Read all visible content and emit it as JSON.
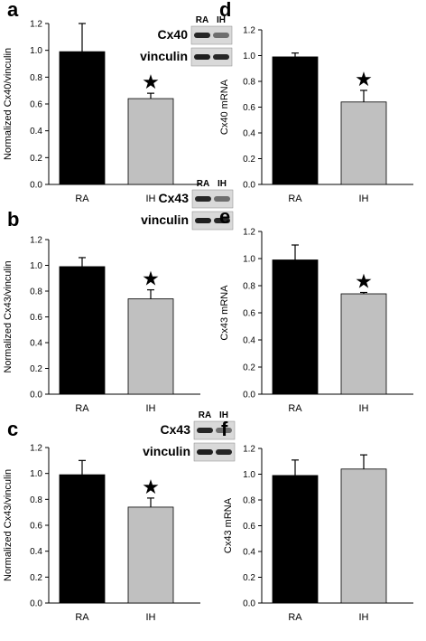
{
  "chart_data": [
    {
      "panel": "a",
      "type": "bar",
      "categories": [
        "RA",
        "IH"
      ],
      "values": [
        0.99,
        0.64
      ],
      "errors": [
        0.21,
        0.04
      ],
      "colors": [
        "#000000",
        "#c0c0c0"
      ],
      "significance": [
        "",
        "★"
      ],
      "ylabel": "Normalized Cx40/vinculin",
      "ylim": [
        0,
        1.2
      ],
      "yticks": [
        "0.0",
        "0.2",
        "0.4",
        "0.6",
        "0.8",
        "1.0",
        "1.2"
      ],
      "blot": {
        "lanes": [
          "RA",
          "IH"
        ],
        "rows": [
          "Cx40",
          "vinculin"
        ]
      }
    },
    {
      "panel": "d",
      "type": "bar",
      "categories": [
        "RA",
        "IH"
      ],
      "values": [
        0.99,
        0.64
      ],
      "errors": [
        0.03,
        0.09
      ],
      "colors": [
        "#000000",
        "#c0c0c0"
      ],
      "significance": [
        "",
        "★"
      ],
      "ylabel": "Cx40 mRNA",
      "ylim": [
        0,
        1.2
      ],
      "yticks": [
        "0.0",
        "0.2",
        "0.4",
        "0.6",
        "0.8",
        "1.0",
        "1.2"
      ]
    },
    {
      "panel": "b",
      "type": "bar",
      "categories": [
        "RA",
        "IH"
      ],
      "values": [
        0.99,
        0.74
      ],
      "errors": [
        0.07,
        0.07
      ],
      "colors": [
        "#000000",
        "#c0c0c0"
      ],
      "significance": [
        "",
        "★"
      ],
      "ylabel": "Normalized Cx43/vinculin",
      "ylim": [
        0,
        1.2
      ],
      "yticks": [
        "0.0",
        "0.2",
        "0.4",
        "0.6",
        "0.8",
        "1.0",
        "1.2"
      ],
      "blot": {
        "lanes": [
          "RA",
          "IH"
        ],
        "rows": [
          "Cx43",
          "vinculin"
        ]
      }
    },
    {
      "panel": "e",
      "type": "bar",
      "categories": [
        "RA",
        "IH"
      ],
      "values": [
        0.99,
        0.74
      ],
      "errors": [
        0.11,
        0.01
      ],
      "colors": [
        "#000000",
        "#c0c0c0"
      ],
      "significance": [
        "",
        "★"
      ],
      "ylabel": "Cx43 mRNA",
      "ylim": [
        0,
        1.2
      ],
      "yticks": [
        "0.0",
        "0.2",
        "0.4",
        "0.6",
        "0.8",
        "1.0",
        "1.2"
      ]
    },
    {
      "panel": "c",
      "type": "bar",
      "categories": [
        "RA",
        "IH"
      ],
      "values": [
        0.99,
        0.74
      ],
      "errors": [
        0.11,
        0.07
      ],
      "colors": [
        "#000000",
        "#c0c0c0"
      ],
      "significance": [
        "",
        "★"
      ],
      "ylabel": "Normalized Cx43/vinculin",
      "ylim": [
        0,
        1.2
      ],
      "yticks": [
        "0.0",
        "0.2",
        "0.4",
        "0.6",
        "0.8",
        "1.0",
        "1.2"
      ],
      "blot": {
        "lanes": [
          "RA",
          "IH"
        ],
        "rows": [
          "Cx43",
          "vinculin"
        ]
      }
    },
    {
      "panel": "f",
      "type": "bar",
      "categories": [
        "RA",
        "IH"
      ],
      "values": [
        0.99,
        1.04
      ],
      "errors": [
        0.12,
        0.11
      ],
      "colors": [
        "#000000",
        "#c0c0c0"
      ],
      "significance": [
        "",
        ""
      ],
      "ylabel": "Cx43 mRNA",
      "ylim": [
        0,
        1.2
      ],
      "yticks": [
        "0.0",
        "0.2",
        "0.4",
        "0.6",
        "0.8",
        "1.0",
        "1.2"
      ]
    }
  ]
}
